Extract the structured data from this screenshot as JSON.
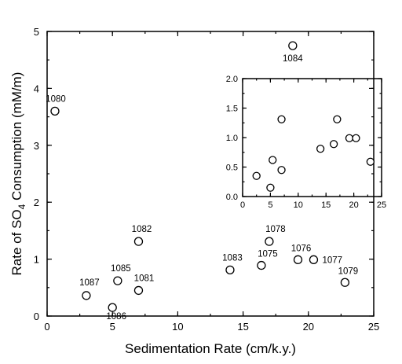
{
  "chart_data": [
    {
      "type": "scatter",
      "title": "",
      "xlabel": "Sedimentation Rate (cm/k.y.)",
      "ylabel_parts": {
        "before": "Rate of SO",
        "sub": "4",
        "after": " Consumption (mM/m)"
      },
      "xlim": [
        0,
        25
      ],
      "ylim": [
        0,
        5
      ],
      "xticks": [
        "0",
        "5",
        "10",
        "15",
        "20",
        "25"
      ],
      "yticks": [
        "0",
        "1",
        "2",
        "3",
        "4",
        "5"
      ],
      "grid": false,
      "points": [
        {
          "site": "1080",
          "x": 0.6,
          "y": 3.6
        },
        {
          "site": "1087",
          "x": 3.0,
          "y": 0.36
        },
        {
          "site": "1086",
          "x": 5.0,
          "y": 0.15
        },
        {
          "site": "1085",
          "x": 5.4,
          "y": 0.62
        },
        {
          "site": "1082",
          "x": 7.0,
          "y": 1.31
        },
        {
          "site": "1081",
          "x": 7.0,
          "y": 0.45
        },
        {
          "site": "1083",
          "x": 14.0,
          "y": 0.81
        },
        {
          "site": "1075",
          "x": 16.4,
          "y": 0.89
        },
        {
          "site": "1078",
          "x": 17.0,
          "y": 1.31
        },
        {
          "site": "1076",
          "x": 19.2,
          "y": 0.99
        },
        {
          "site": "1077",
          "x": 20.4,
          "y": 0.99
        },
        {
          "site": "1079",
          "x": 22.8,
          "y": 0.59
        },
        {
          "site": "1084",
          "x": 18.8,
          "y": 4.75
        }
      ]
    },
    {
      "type": "scatter",
      "title": "",
      "xlim": [
        0,
        25
      ],
      "ylim": [
        0,
        2.0
      ],
      "xticks": [
        "0",
        "5",
        "10",
        "15",
        "20",
        "25"
      ],
      "yticks": [
        "0.0",
        "0.5",
        "1.0",
        "1.5",
        "2.0"
      ],
      "grid": false,
      "points": [
        {
          "x": 2.5,
          "y": 0.35
        },
        {
          "x": 5.0,
          "y": 0.15
        },
        {
          "x": 5.4,
          "y": 0.62
        },
        {
          "x": 7.0,
          "y": 0.45
        },
        {
          "x": 7.0,
          "y": 1.31
        },
        {
          "x": 14.0,
          "y": 0.81
        },
        {
          "x": 16.4,
          "y": 0.89
        },
        {
          "x": 17.0,
          "y": 1.31
        },
        {
          "x": 19.2,
          "y": 0.99
        },
        {
          "x": 20.4,
          "y": 0.99
        },
        {
          "x": 23.0,
          "y": 0.59
        }
      ]
    }
  ]
}
